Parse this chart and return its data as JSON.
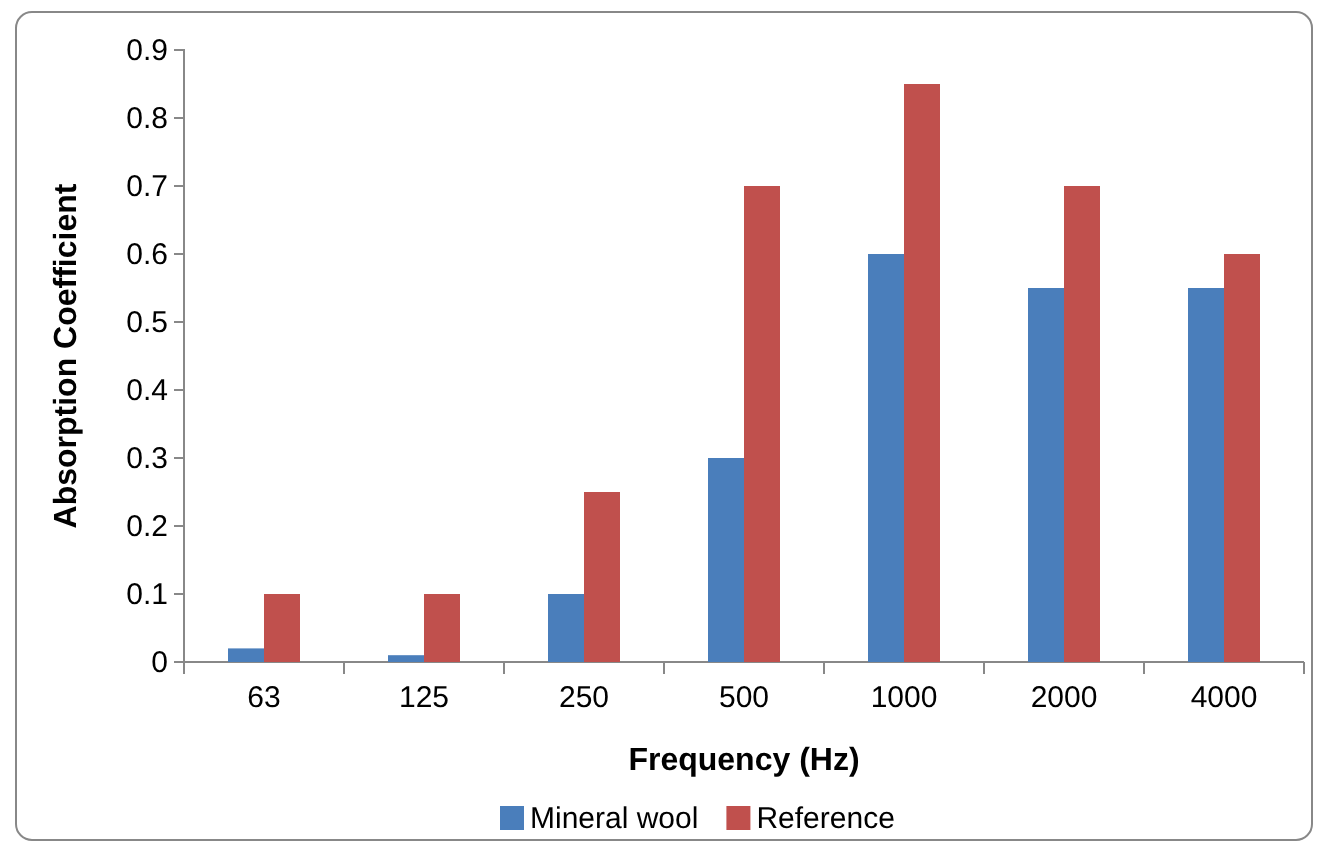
{
  "chart_data": {
    "type": "bar",
    "xlabel": "Frequency (Hz)",
    "ylabel": "Absorption Coefficient",
    "categories": [
      "63",
      "125",
      "250",
      "500",
      "1000",
      "2000",
      "4000"
    ],
    "series": [
      {
        "name": "Mineral wool",
        "color": "#4a7ebb",
        "values": [
          0.02,
          0.01,
          0.1,
          0.3,
          0.6,
          0.55,
          0.55
        ]
      },
      {
        "name": "Reference",
        "color": "#c0504d",
        "values": [
          0.1,
          0.1,
          0.25,
          0.7,
          0.85,
          0.7,
          0.6
        ]
      }
    ],
    "ylim": [
      0,
      0.9
    ],
    "yticks": [
      0,
      0.1,
      0.2,
      0.3,
      0.4,
      0.5,
      0.6,
      0.7,
      0.8,
      0.9
    ],
    "grid": false,
    "legend": "bottom"
  }
}
